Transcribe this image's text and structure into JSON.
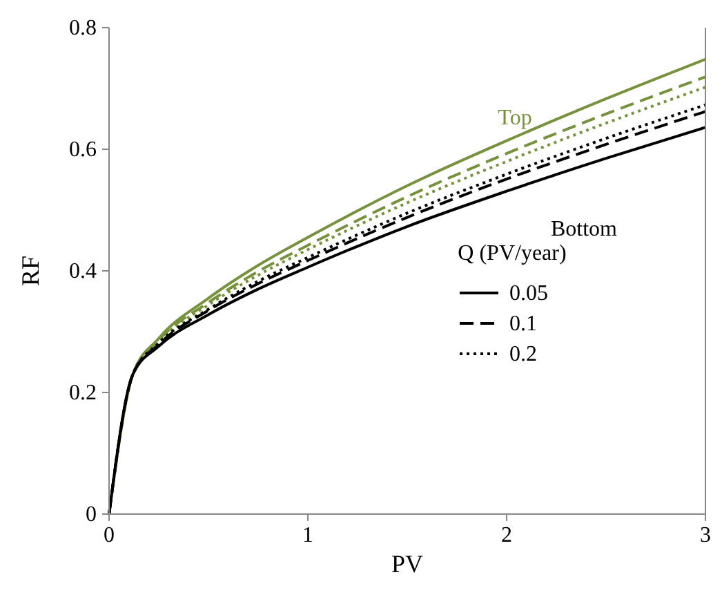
{
  "chart_data": {
    "type": "line",
    "xlabel": "PV",
    "ylabel": "RF",
    "legend_title": "Q (PV/year)",
    "legend": "right",
    "grid": false,
    "x": [
      0,
      0.12,
      0.25,
      0.5,
      0.75,
      1,
      1.5,
      2,
      2.5,
      3
    ],
    "xlim": [
      0,
      3
    ],
    "xticks": [
      0,
      1,
      2,
      3
    ],
    "ylim": [
      0,
      0.8
    ],
    "yticks": [
      0,
      0.2,
      0.4,
      0.6,
      0.8
    ],
    "series": [
      {
        "color": "#76923c",
        "line_style": "solid",
        "values": [
          0,
          0.23,
          0.289,
          0.355,
          0.409,
          0.455,
          0.54,
          0.614,
          0.683,
          0.748
        ]
      },
      {
        "color": "#76923c",
        "line_style": "dashed",
        "values": [
          0,
          0.23,
          0.286,
          0.348,
          0.399,
          0.442,
          0.522,
          0.593,
          0.658,
          0.719
        ]
      },
      {
        "color": "#76923c",
        "line_style": "dotted",
        "values": [
          0,
          0.23,
          0.284,
          0.344,
          0.393,
          0.435,
          0.512,
          0.58,
          0.643,
          0.702
        ]
      },
      {
        "name": "0.2",
        "color": "#000000",
        "line_style": "dotted",
        "values": [
          0,
          0.23,
          0.281,
          0.337,
          0.383,
          0.422,
          0.495,
          0.559,
          0.618,
          0.673
        ]
      },
      {
        "name": "0.1",
        "color": "#000000",
        "line_style": "dashed",
        "values": [
          0,
          0.23,
          0.279,
          0.335,
          0.379,
          0.417,
          0.488,
          0.551,
          0.608,
          0.662
        ]
      },
      {
        "name": "0.05",
        "color": "#000000",
        "line_style": "solid",
        "values": [
          0,
          0.23,
          0.276,
          0.328,
          0.37,
          0.406,
          0.473,
          0.531,
          0.585,
          0.636
        ]
      }
    ],
    "annotations": [
      "Top",
      "Bottom"
    ]
  }
}
